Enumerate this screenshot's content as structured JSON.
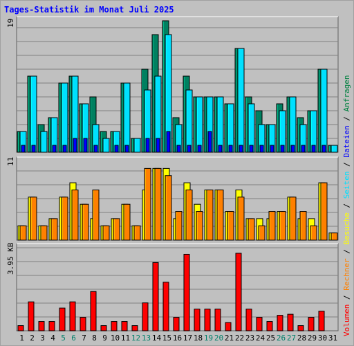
{
  "title": "Tages-Statistik im Monat Juli 2025",
  "scales": {
    "top": "19",
    "middle": "11",
    "bottom": "3.95 KB"
  },
  "legend": {
    "items": [
      {
        "label": "Volumen",
        "color": "#ff0000"
      },
      {
        "label": "Rechner",
        "color": "#ff8000"
      },
      {
        "label": "Besuche",
        "color": "#ffff00"
      },
      {
        "label": "Seiten",
        "color": "#00e0ff"
      },
      {
        "label": "Dateien",
        "color": "#0000ff"
      },
      {
        "label": "Anfragen",
        "color": "#008040"
      }
    ],
    "separator": " / "
  },
  "colors": {
    "background": "#c0c0c0",
    "plot_bg": "#c0c0c0",
    "grid": "#808080",
    "title": "#0000ff",
    "weekend_label": "#00806a",
    "weekday_label": "#000000"
  },
  "chart_data": [
    {
      "type": "bar",
      "name": "requests-pages-files",
      "categories": [
        "1",
        "2",
        "3",
        "4",
        "5",
        "6",
        "7",
        "8",
        "9",
        "10",
        "11",
        "12",
        "13",
        "14",
        "15",
        "16",
        "17",
        "18",
        "19",
        "20",
        "21",
        "22",
        "23",
        "24",
        "25",
        "26",
        "27",
        "28",
        "29",
        "30",
        "31"
      ],
      "weekend_days": [
        5,
        6,
        12,
        13,
        19,
        20,
        26,
        27
      ],
      "ymax": 19,
      "series": [
        {
          "name": "Anfragen",
          "color": "#008060",
          "values": [
            3,
            11,
            4,
            5,
            10,
            11,
            7,
            8,
            3,
            3,
            10,
            2,
            12,
            17,
            19,
            5,
            11,
            8,
            8,
            8,
            7,
            15,
            8,
            6,
            4,
            7,
            8,
            5,
            6,
            12,
            1
          ]
        },
        {
          "name": "Seiten",
          "color": "#00e0ff",
          "values": [
            3,
            11,
            3,
            5,
            10,
            11,
            7,
            4,
            2,
            3,
            10,
            2,
            9,
            11,
            17,
            4,
            9,
            8,
            8,
            8,
            7,
            15,
            7,
            4,
            4,
            6,
            8,
            4,
            6,
            12,
            1
          ]
        },
        {
          "name": "Dateien",
          "color": "#0000ff",
          "values": [
            1,
            1,
            0,
            1,
            1,
            2,
            2,
            1,
            0,
            1,
            1,
            0,
            2,
            2,
            3,
            1,
            1,
            1,
            3,
            1,
            1,
            1,
            1,
            1,
            1,
            1,
            1,
            1,
            1,
            1,
            0
          ]
        }
      ]
    },
    {
      "type": "bar",
      "name": "visits-hosts",
      "categories": [
        "1",
        "2",
        "3",
        "4",
        "5",
        "6",
        "7",
        "8",
        "9",
        "10",
        "11",
        "12",
        "13",
        "14",
        "15",
        "16",
        "17",
        "18",
        "19",
        "20",
        "21",
        "22",
        "23",
        "24",
        "25",
        "26",
        "27",
        "28",
        "29",
        "30",
        "31"
      ],
      "ymax": 11,
      "series": [
        {
          "name": "Besuche",
          "color": "#ffff00",
          "values": [
            2,
            6,
            2,
            3,
            6,
            8,
            5,
            3,
            2,
            3,
            5,
            2,
            7,
            10,
            10,
            3,
            8,
            5,
            7,
            7,
            4,
            7,
            3,
            3,
            3,
            4,
            6,
            3,
            3,
            8,
            1
          ]
        },
        {
          "name": "Rechner",
          "color": "#ff8000",
          "values": [
            2,
            6,
            2,
            3,
            6,
            7,
            5,
            7,
            2,
            3,
            5,
            2,
            10,
            10,
            9,
            4,
            7,
            4,
            7,
            7,
            4,
            6,
            3,
            2,
            4,
            4,
            6,
            4,
            2,
            8,
            1
          ]
        }
      ]
    },
    {
      "type": "bar",
      "name": "volume",
      "unit": "KB",
      "categories": [
        "1",
        "2",
        "3",
        "4",
        "5",
        "6",
        "7",
        "8",
        "9",
        "10",
        "11",
        "12",
        "13",
        "14",
        "15",
        "16",
        "17",
        "18",
        "19",
        "20",
        "21",
        "22",
        "23",
        "24",
        "25",
        "26",
        "27",
        "28",
        "29",
        "30",
        "31"
      ],
      "ymax": 3.95,
      "series": [
        {
          "name": "Volumen",
          "color": "#ff0000",
          "values": [
            0.25,
            1.4,
            0.45,
            0.45,
            1.1,
            1.4,
            0.65,
            1.9,
            0.25,
            0.45,
            0.45,
            0.25,
            1.35,
            3.3,
            2.35,
            0.65,
            3.7,
            1.05,
            1.05,
            1.05,
            0.4,
            3.75,
            1.05,
            0.65,
            0.45,
            0.75,
            0.8,
            0.25,
            0.65,
            0.95,
            0
          ]
        }
      ]
    }
  ]
}
